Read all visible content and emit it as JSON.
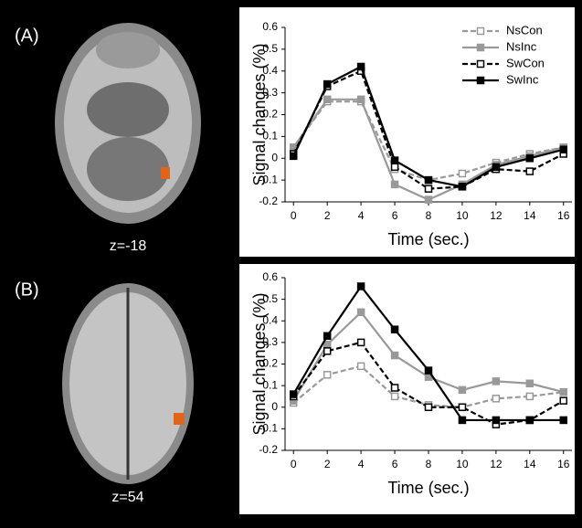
{
  "chart_data": [
    {
      "type": "line",
      "panel": "(A)",
      "image_caption": "z=-18",
      "xlabel": "Time (sec.)",
      "ylabel": "Signal changes (%)",
      "x": [
        0,
        2,
        4,
        6,
        8,
        10,
        12,
        14,
        16
      ],
      "xlim": [
        -0.5,
        16.5
      ],
      "xticks": [
        0,
        2,
        4,
        6,
        8,
        10,
        12,
        14,
        16
      ],
      "ylim": [
        -0.2,
        0.6
      ],
      "yticks": [
        -0.2,
        -0.1,
        0,
        0.1,
        0.2,
        0.3,
        0.4,
        0.5,
        0.6
      ],
      "legend": "upper right",
      "series": [
        {
          "name": "NsCon",
          "color": "#999999",
          "dashed": true,
          "marker": "open",
          "values": [
            0.05,
            0.26,
            0.26,
            -0.05,
            -0.1,
            -0.07,
            -0.02,
            0.02,
            0.05
          ]
        },
        {
          "name": "NsInc",
          "color": "#999999",
          "dashed": false,
          "marker": "filled",
          "values": [
            0.05,
            0.27,
            0.27,
            -0.12,
            -0.19,
            -0.12,
            -0.03,
            0.01,
            0.05
          ]
        },
        {
          "name": "SwCon",
          "color": "#000000",
          "dashed": true,
          "marker": "open",
          "values": [
            0.02,
            0.33,
            0.4,
            -0.04,
            -0.14,
            -0.13,
            -0.05,
            -0.06,
            0.02
          ]
        },
        {
          "name": "SwInc",
          "color": "#000000",
          "dashed": false,
          "marker": "filled",
          "values": [
            0.01,
            0.34,
            0.42,
            -0.01,
            -0.1,
            -0.13,
            -0.04,
            0.0,
            0.04
          ]
        }
      ]
    },
    {
      "type": "line",
      "panel": "(B)",
      "image_caption": "z=54",
      "xlabel": "Time (sec.)",
      "ylabel": "Signal changes (%)",
      "x": [
        0,
        2,
        4,
        6,
        8,
        10,
        12,
        14,
        16
      ],
      "xlim": [
        -0.5,
        16.5
      ],
      "xticks": [
        0,
        2,
        4,
        6,
        8,
        10,
        12,
        14,
        16
      ],
      "ylim": [
        -0.2,
        0.6
      ],
      "yticks": [
        -0.2,
        -0.1,
        0,
        0.1,
        0.2,
        0.3,
        0.4,
        0.5,
        0.6
      ],
      "legend": false,
      "series": [
        {
          "color": "#999999",
          "dashed": true,
          "marker": "open",
          "values": [
            0.02,
            0.15,
            0.19,
            0.05,
            0.01,
            0.0,
            0.04,
            0.05,
            0.07
          ]
        },
        {
          "color": "#999999",
          "dashed": false,
          "marker": "filled",
          "values": [
            0.03,
            0.29,
            0.44,
            0.24,
            0.14,
            0.08,
            0.12,
            0.11,
            0.07
          ]
        },
        {
          "color": "#000000",
          "dashed": true,
          "marker": "open",
          "values": [
            0.05,
            0.26,
            0.3,
            0.09,
            0.0,
            0.0,
            -0.08,
            -0.06,
            0.03
          ]
        },
        {
          "color": "#000000",
          "dashed": false,
          "marker": "filled",
          "values": [
            0.06,
            0.33,
            0.56,
            0.36,
            0.17,
            -0.06,
            -0.06,
            -0.06,
            -0.06
          ]
        }
      ]
    }
  ]
}
